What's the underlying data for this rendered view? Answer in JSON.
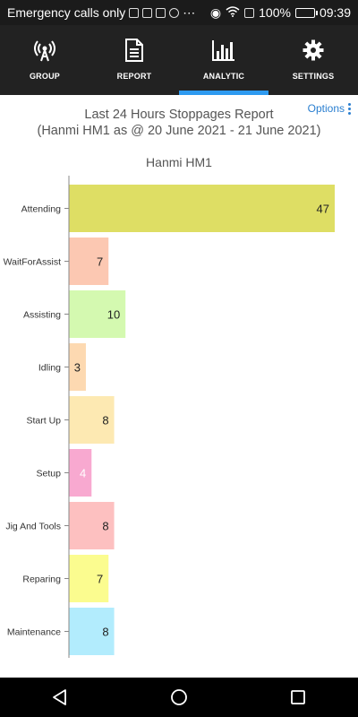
{
  "status_bar": {
    "carrier_text": "Emergency calls only",
    "battery": "100%",
    "time": "09:39"
  },
  "tabs": [
    {
      "label": "GROUP",
      "icon": "broadcast-tower-icon",
      "active": false
    },
    {
      "label": "REPORT",
      "icon": "document-icon",
      "active": false
    },
    {
      "label": "ANALYTIC",
      "icon": "bar-chart-icon",
      "active": true
    },
    {
      "label": "SETTINGS",
      "icon": "gear-icon",
      "active": false
    }
  ],
  "report": {
    "options_label": "Options",
    "title_line1": "Last 24 Hours Stoppages Report",
    "title_line2": "(Hanmi HM1 as @ 20 June 2021 - 21 June 2021)"
  },
  "chart_data": {
    "type": "bar",
    "orientation": "horizontal",
    "title": "Hanmi HM1",
    "categories": [
      "Attending",
      "WaitForAssist",
      "Assisting",
      "Idling",
      "Start Up",
      "Setup",
      "Jig And Tools",
      "Reparing",
      "Maintenance"
    ],
    "values": [
      47,
      7,
      10,
      3,
      8,
      4,
      8,
      7,
      8
    ],
    "colors": [
      "#dede64",
      "#fcc8b2",
      "#d4f9b0",
      "#fdd9b1",
      "#fde9b2",
      "#f8a9d0",
      "#fdc0c0",
      "#fbfc8f",
      "#b2ecfd"
    ],
    "label_colors": [
      "#222222",
      "#222222",
      "#222222",
      "#222222",
      "#222222",
      "#ffffff",
      "#222222",
      "#222222",
      "#222222"
    ],
    "xlim": [
      0,
      47
    ]
  },
  "nav": {
    "back_icon": "back-triangle-icon",
    "home_icon": "home-circle-icon",
    "recents_icon": "recents-square-icon"
  }
}
